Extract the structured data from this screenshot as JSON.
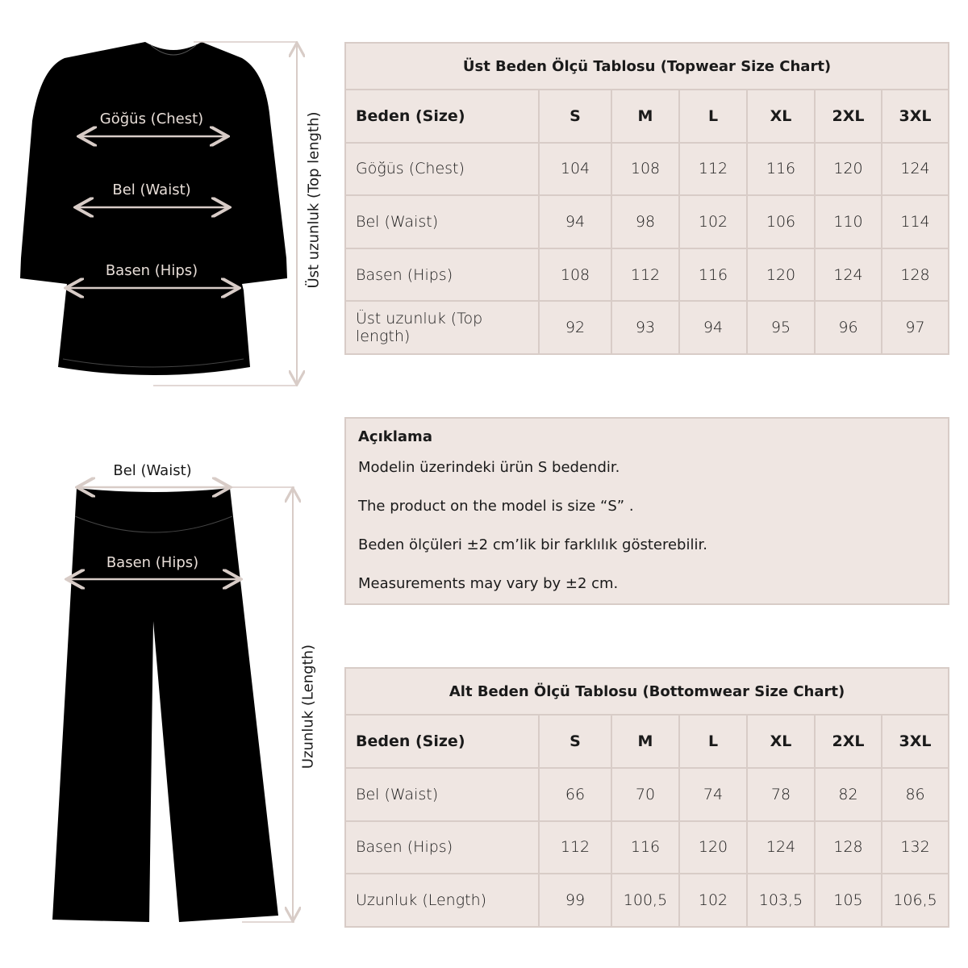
{
  "topwear": {
    "title": "Üst Beden Ölçü Tablosu (Topwear Size Chart)",
    "header": [
      "Beden (Size)",
      "S",
      "M",
      "L",
      "XL",
      "2XL",
      "3XL"
    ],
    "rows": [
      [
        "Göğüs (Chest)",
        "104",
        "108",
        "112",
        "116",
        "120",
        "124"
      ],
      [
        "Bel (Waist)",
        "94",
        "98",
        "102",
        "106",
        "110",
        "114"
      ],
      [
        "Basen (Hips)",
        "108",
        "112",
        "116",
        "120",
        "124",
        "128"
      ],
      [
        "Üst uzunluk (Top length)",
        "92",
        "93",
        "94",
        "95",
        "96",
        "97"
      ]
    ],
    "diagram": {
      "chest": "Göğüs (Chest)",
      "waist": "Bel (Waist)",
      "hips": "Basen (Hips)",
      "length": "Üst uzunluk (Top length)"
    }
  },
  "note": {
    "heading": "Açıklama",
    "lines": [
      "Modelin üzerindeki ürün S bedendir.",
      "The product on the model is size “S” .",
      "Beden ölçüleri ±2 cm’lik bir farklılık gösterebilir.",
      "Measurements may vary by ±2 cm."
    ]
  },
  "bottomwear": {
    "title": "Alt Beden Ölçü Tablosu (Bottomwear Size Chart)",
    "header": [
      "Beden (Size)",
      "S",
      "M",
      "L",
      "XL",
      "2XL",
      "3XL"
    ],
    "rows": [
      [
        "Bel (Waist)",
        "66",
        "70",
        "74",
        "78",
        "82",
        "86"
      ],
      [
        "Basen (Hips)",
        "112",
        "116",
        "120",
        "124",
        "128",
        "132"
      ],
      [
        "Uzunluk (Length)",
        "99",
        "100,5",
        "102",
        "103,5",
        "105",
        "106,5"
      ]
    ],
    "diagram": {
      "waist": "Bel (Waist)",
      "hips": "Basen (Hips)",
      "length": "Uzunluk (Length)"
    }
  },
  "colors": {
    "panel": "#efe6e2",
    "border": "#d8ccc7",
    "garment": "#000000",
    "arrow": "#d8ccc7"
  }
}
